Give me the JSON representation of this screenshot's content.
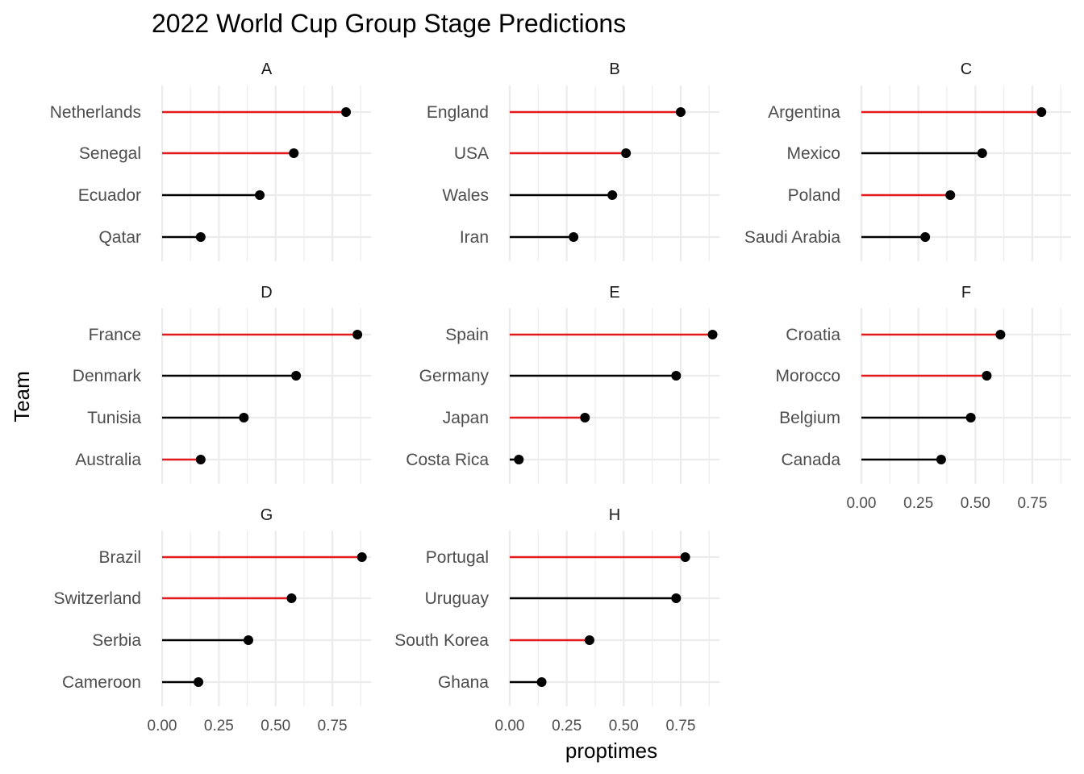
{
  "chart_data": {
    "type": "lollipop",
    "title": "2022 World Cup Group Stage Predictions",
    "xlabel": "proptimes",
    "ylabel": "Team",
    "xlim": [
      0,
      0.92
    ],
    "x_ticks": [
      0.0,
      0.25,
      0.5,
      0.75
    ],
    "x_tick_labels": [
      "0.00",
      "0.25",
      "0.50",
      "0.75"
    ],
    "grid": true,
    "colors": {
      "advance": "#e31a1c",
      "eliminated": "#000000",
      "point": "#000000"
    },
    "groups": [
      {
        "name": "A",
        "teams": [
          {
            "team": "Netherlands",
            "proptimes": 0.81,
            "advance": true
          },
          {
            "team": "Senegal",
            "proptimes": 0.58,
            "advance": true
          },
          {
            "team": "Ecuador",
            "proptimes": 0.43,
            "advance": false
          },
          {
            "team": "Qatar",
            "proptimes": 0.17,
            "advance": false
          }
        ]
      },
      {
        "name": "B",
        "teams": [
          {
            "team": "England",
            "proptimes": 0.75,
            "advance": true
          },
          {
            "team": "USA",
            "proptimes": 0.51,
            "advance": true
          },
          {
            "team": "Wales",
            "proptimes": 0.45,
            "advance": false
          },
          {
            "team": "Iran",
            "proptimes": 0.28,
            "advance": false
          }
        ]
      },
      {
        "name": "C",
        "teams": [
          {
            "team": "Argentina",
            "proptimes": 0.79,
            "advance": true
          },
          {
            "team": "Mexico",
            "proptimes": 0.53,
            "advance": false
          },
          {
            "team": "Poland",
            "proptimes": 0.39,
            "advance": true
          },
          {
            "team": "Saudi Arabia",
            "proptimes": 0.28,
            "advance": false
          }
        ]
      },
      {
        "name": "D",
        "teams": [
          {
            "team": "France",
            "proptimes": 0.86,
            "advance": true
          },
          {
            "team": "Denmark",
            "proptimes": 0.59,
            "advance": false
          },
          {
            "team": "Tunisia",
            "proptimes": 0.36,
            "advance": false
          },
          {
            "team": "Australia",
            "proptimes": 0.17,
            "advance": true
          }
        ]
      },
      {
        "name": "E",
        "teams": [
          {
            "team": "Spain",
            "proptimes": 0.89,
            "advance": true
          },
          {
            "team": "Germany",
            "proptimes": 0.73,
            "advance": false
          },
          {
            "team": "Japan",
            "proptimes": 0.33,
            "advance": true
          },
          {
            "team": "Costa Rica",
            "proptimes": 0.04,
            "advance": false
          }
        ]
      },
      {
        "name": "F",
        "teams": [
          {
            "team": "Croatia",
            "proptimes": 0.61,
            "advance": true
          },
          {
            "team": "Morocco",
            "proptimes": 0.55,
            "advance": true
          },
          {
            "team": "Belgium",
            "proptimes": 0.48,
            "advance": false
          },
          {
            "team": "Canada",
            "proptimes": 0.35,
            "advance": false
          }
        ]
      },
      {
        "name": "G",
        "teams": [
          {
            "team": "Brazil",
            "proptimes": 0.88,
            "advance": true
          },
          {
            "team": "Switzerland",
            "proptimes": 0.57,
            "advance": true
          },
          {
            "team": "Serbia",
            "proptimes": 0.38,
            "advance": false
          },
          {
            "team": "Cameroon",
            "proptimes": 0.16,
            "advance": false
          }
        ]
      },
      {
        "name": "H",
        "teams": [
          {
            "team": "Portugal",
            "proptimes": 0.77,
            "advance": true
          },
          {
            "team": "Uruguay",
            "proptimes": 0.73,
            "advance": false
          },
          {
            "team": "South Korea",
            "proptimes": 0.35,
            "advance": true
          },
          {
            "team": "Ghana",
            "proptimes": 0.14,
            "advance": false
          }
        ]
      }
    ]
  }
}
